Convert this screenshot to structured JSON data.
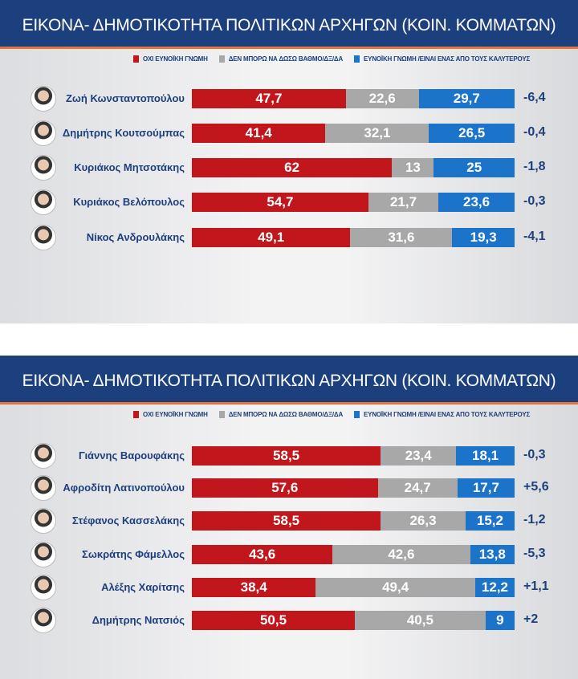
{
  "chart_data": [
    {
      "type": "bar",
      "stacked": true,
      "orientation": "horizontal",
      "title": "ΕΙΚΟΝΑ- ΔΗΜΟΤΙΚΟΤΗΤΑ ΠΟΛΙΤΙΚΩΝ ΑΡΧΗΓΩΝ (ΚΟΙΝ. ΚΟΜΜΑΤΩΝ)",
      "legend_placement": "top",
      "categories": [
        "Ζωή Κωνσταντοπούλου",
        "Δημήτρης Κουτσούμπας",
        "Κυριάκος Μητσοτάκης",
        "Κυριάκος Βελόπουλος",
        "Νίκος Ανδρουλάκης"
      ],
      "series": [
        {
          "name": "ΟΧΙ ΕΥΝΟΪΚΗ ΓΝΩΜΗ",
          "color": "#c0161c",
          "values": [
            "47,7",
            "41,4",
            "62",
            "54,7",
            "49,1"
          ]
        },
        {
          "name": "ΔΕΝ ΜΠΟΡΩ ΝΑ ΔΩΣΩ ΒΑΘΜΟ/ΔΞ/ΔΑ",
          "color": "#a8a8a8",
          "values": [
            "22,6",
            "32,1",
            "13",
            "21,7",
            "31,6"
          ]
        },
        {
          "name": "ΕΥΝΟΪΚΗ ΓΝΩΜΗ /ΕΙΝΑΙ ΕΝΑΣ ΑΠΟ ΤΟΥΣ ΚΑΛΥΤΕΡΟΥΣ",
          "color": "#1b74c9",
          "values": [
            "29,7",
            "26,5",
            "25",
            "23,6",
            "19,3"
          ]
        }
      ],
      "change": [
        "-6,4",
        "-0,4",
        "-1,8",
        "-0,3",
        "-4,1"
      ]
    },
    {
      "type": "bar",
      "stacked": true,
      "orientation": "horizontal",
      "title": "ΕΙΚΟΝΑ- ΔΗΜΟΤΙΚΟΤΗΤΑ ΠΟΛΙΤΙΚΩΝ ΑΡΧΗΓΩΝ (ΚΟΙΝ. ΚΟΜΜΑΤΩΝ)",
      "legend_placement": "top",
      "categories": [
        "Γιάννης Βαρουφάκης",
        "Αφροδίτη Λατινοπούλου",
        "Στέφανος Κασσελάκης",
        "Σωκράτης Φάμελλος",
        "Αλέξης Χαρίτσης",
        "Δημήτρης Νατσιός"
      ],
      "series": [
        {
          "name": "ΟΧΙ ΕΥΝΟΪΚΗ ΓΝΩΜΗ",
          "color": "#c0161c",
          "values": [
            "58,5",
            "57,6",
            "58,5",
            "43,6",
            "38,4",
            "50,5"
          ]
        },
        {
          "name": "ΔΕΝ ΜΠΟΡΩ ΝΑ ΔΩΣΩ ΒΑΘΜΟ/ΔΞ/ΔΑ",
          "color": "#a8a8a8",
          "values": [
            "23,4",
            "24,7",
            "26,3",
            "42,6",
            "49,4",
            "40,5"
          ]
        },
        {
          "name": "ΕΥΝΟΪΚΗ ΓΝΩΜΗ /ΕΙΝΑΙ ΕΝΑΣ ΑΠΟ ΤΟΥΣ ΚΑΛΥΤΕΡΟΥΣ",
          "color": "#1b74c9",
          "values": [
            "18,1",
            "17,7",
            "15,2",
            "13,8",
            "12,2",
            "9"
          ]
        }
      ],
      "change": [
        "-0,3",
        "+5,6",
        "-1,2",
        "-5,3",
        "+1,1",
        "+2"
      ]
    }
  ]
}
